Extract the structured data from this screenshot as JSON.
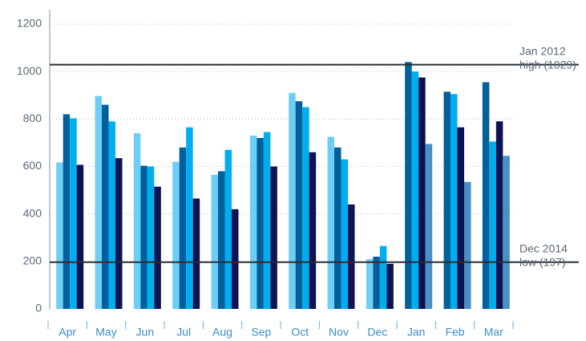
{
  "chart_data": {
    "type": "bar",
    "categories": [
      "Apr",
      "May",
      "Jun",
      "Jul",
      "Aug",
      "Sep",
      "Oct",
      "Nov",
      "Dec",
      "Jan",
      "Feb",
      "Mar"
    ],
    "series": [
      {
        "color": "#6dcff6",
        "values": [
          617,
          897,
          740,
          620,
          565,
          730,
          910,
          725,
          210,
          null,
          null,
          null
        ]
      },
      {
        "color": "#00609c",
        "values": [
          820,
          860,
          603,
          680,
          580,
          720,
          875,
          680,
          220,
          1040,
          915,
          955
        ]
      },
      {
        "color": "#00aeef",
        "values": [
          803,
          790,
          600,
          765,
          670,
          745,
          850,
          630,
          265,
          1000,
          905,
          705
        ]
      },
      {
        "color": "#0c1252",
        "values": [
          607,
          635,
          515,
          465,
          420,
          600,
          660,
          440,
          190,
          975,
          765,
          790
        ]
      },
      {
        "color": "#4a8fc6",
        "values": [
          null,
          null,
          null,
          null,
          null,
          null,
          null,
          null,
          null,
          695,
          535,
          645
        ]
      }
    ],
    "ylim": [
      0,
      1200
    ],
    "yticks": [
      0,
      200,
      400,
      600,
      800,
      1000,
      1200
    ],
    "grid": true,
    "reference_lines": [
      {
        "value": 1029,
        "label": [
          "Jan 2012",
          "high (1029)"
        ]
      },
      {
        "value": 197,
        "label": [
          "Dec 2014",
          "low (197)"
        ]
      }
    ]
  }
}
